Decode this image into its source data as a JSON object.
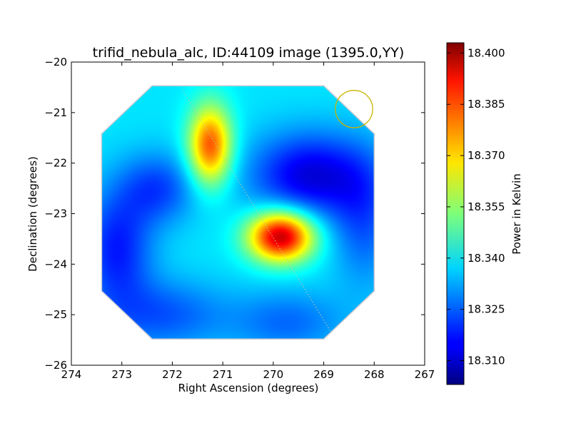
{
  "chart_data": {
    "type": "heatmap",
    "title": "trifid_nebula_alc, ID:44109 image (1395.0,YY)",
    "xlabel": "Right Ascension (degrees)",
    "ylabel": "Declination (degrees)",
    "xlim": [
      274,
      267
    ],
    "ylim": [
      -26,
      -20
    ],
    "x_ticks": [
      274,
      273,
      272,
      271,
      270,
      269,
      268,
      267
    ],
    "x_tick_labels": [
      "274",
      "273",
      "272",
      "271",
      "270",
      "269",
      "268",
      "267"
    ],
    "y_ticks": [
      -20,
      -21,
      -22,
      -23,
      -24,
      -25,
      -26
    ],
    "y_tick_labels": [
      "−20",
      "−21",
      "−22",
      "−23",
      "−24",
      "−25",
      "−26"
    ],
    "colormap": "jet",
    "colorbar": {
      "label": "Power in Kelvin",
      "range": [
        18.303,
        18.403
      ],
      "ticks": [
        18.31,
        18.325,
        18.34,
        18.355,
        18.37,
        18.385,
        18.4
      ],
      "tick_labels": [
        "18.310",
        "18.325",
        "18.340",
        "18.355",
        "18.370",
        "18.385",
        "18.400"
      ]
    },
    "base_level": 18.338,
    "map_footprint_radec": [
      [
        272.4,
        -20.47
      ],
      [
        269.0,
        -20.47
      ],
      [
        268.0,
        -21.42
      ],
      [
        268.0,
        -24.53
      ],
      [
        269.0,
        -25.48
      ],
      [
        272.4,
        -25.48
      ],
      [
        273.4,
        -24.53
      ],
      [
        273.4,
        -21.42
      ]
    ],
    "features": [
      {
        "kind": "peak",
        "ra": 269.85,
        "dec": -23.45,
        "value": 18.398,
        "sigma_ra": 0.45,
        "sigma_dec": 0.35
      },
      {
        "kind": "peak",
        "ra": 271.25,
        "dec": -21.65,
        "value": 18.383,
        "sigma_ra": 0.3,
        "sigma_dec": 0.55
      },
      {
        "kind": "trough",
        "ra": 269.25,
        "dec": -22.25,
        "value": 18.312,
        "sigma_ra": 0.85,
        "sigma_dec": 0.6
      },
      {
        "kind": "trough",
        "ra": 272.3,
        "dec": -22.5,
        "value": 18.322,
        "sigma_ra": 0.55,
        "sigma_dec": 0.5
      },
      {
        "kind": "trough",
        "ra": 273.1,
        "dec": -23.7,
        "value": 18.318,
        "sigma_ra": 0.5,
        "sigma_dec": 0.8
      },
      {
        "kind": "trough",
        "ra": 272.2,
        "dec": -25.0,
        "value": 18.324,
        "sigma_ra": 0.9,
        "sigma_dec": 0.5
      },
      {
        "kind": "trough",
        "ra": 269.7,
        "dec": -25.15,
        "value": 18.326,
        "sigma_ra": 0.8,
        "sigma_dec": 0.45
      },
      {
        "kind": "trough",
        "ra": 268.2,
        "dec": -23.2,
        "value": 18.325,
        "sigma_ra": 0.45,
        "sigma_dec": 0.9
      }
    ],
    "overlays": {
      "dotted_line": {
        "color": "#c8c8a0",
        "from": [
          271.8,
          -20.55
        ],
        "to": [
          268.85,
          -25.35
        ]
      },
      "circle": {
        "color": "#c8b400",
        "center_ra": 268.4,
        "center_dec": -20.93,
        "radius_deg": 0.37
      }
    }
  }
}
